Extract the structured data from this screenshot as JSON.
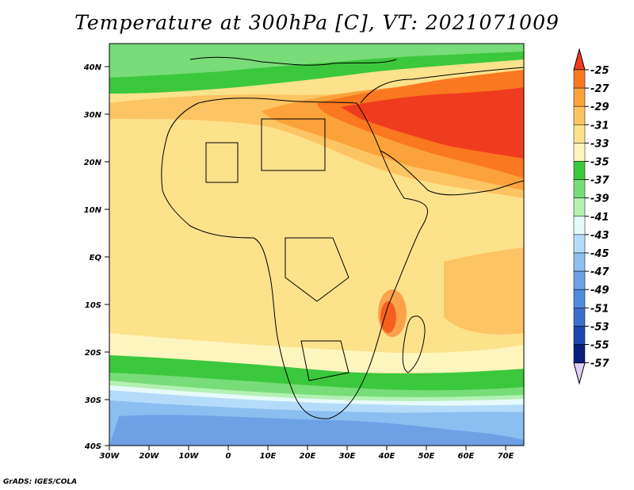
{
  "title": "Temperature at 300hPa [C], VT: 2021071009",
  "credit": "GrADS: IGES/COLA",
  "map": {
    "variable": "Temperature",
    "level": "300hPa",
    "units": "C",
    "valid_time": "2021071009",
    "lat_ticks": [
      "40N",
      "30N",
      "20N",
      "10N",
      "EQ",
      "10S",
      "20S",
      "30S",
      "40S"
    ],
    "lon_ticks": [
      "30W",
      "20W",
      "10W",
      "0",
      "10E",
      "20E",
      "30E",
      "40E",
      "50E",
      "60E",
      "70E"
    ]
  },
  "colorbar": {
    "labels": [
      "-25",
      "-27",
      "-29",
      "-31",
      "-33",
      "-35",
      "-37",
      "-39",
      "-41",
      "-43",
      "-45",
      "-47",
      "-49",
      "-51",
      "-53",
      "-55",
      "-57"
    ],
    "colors": [
      "#f03c1e",
      "#fa7820",
      "#fca23a",
      "#fdc463",
      "#fde28c",
      "#fff5be",
      "#3cc83c",
      "#78dc78",
      "#b4f0b4",
      "#e6fafa",
      "#b4dcfa",
      "#8cbef0",
      "#6ea0e6",
      "#508cdc",
      "#3c6ecc",
      "#1e46b0",
      "#0a1e80",
      "#dcd2f0"
    ]
  }
}
